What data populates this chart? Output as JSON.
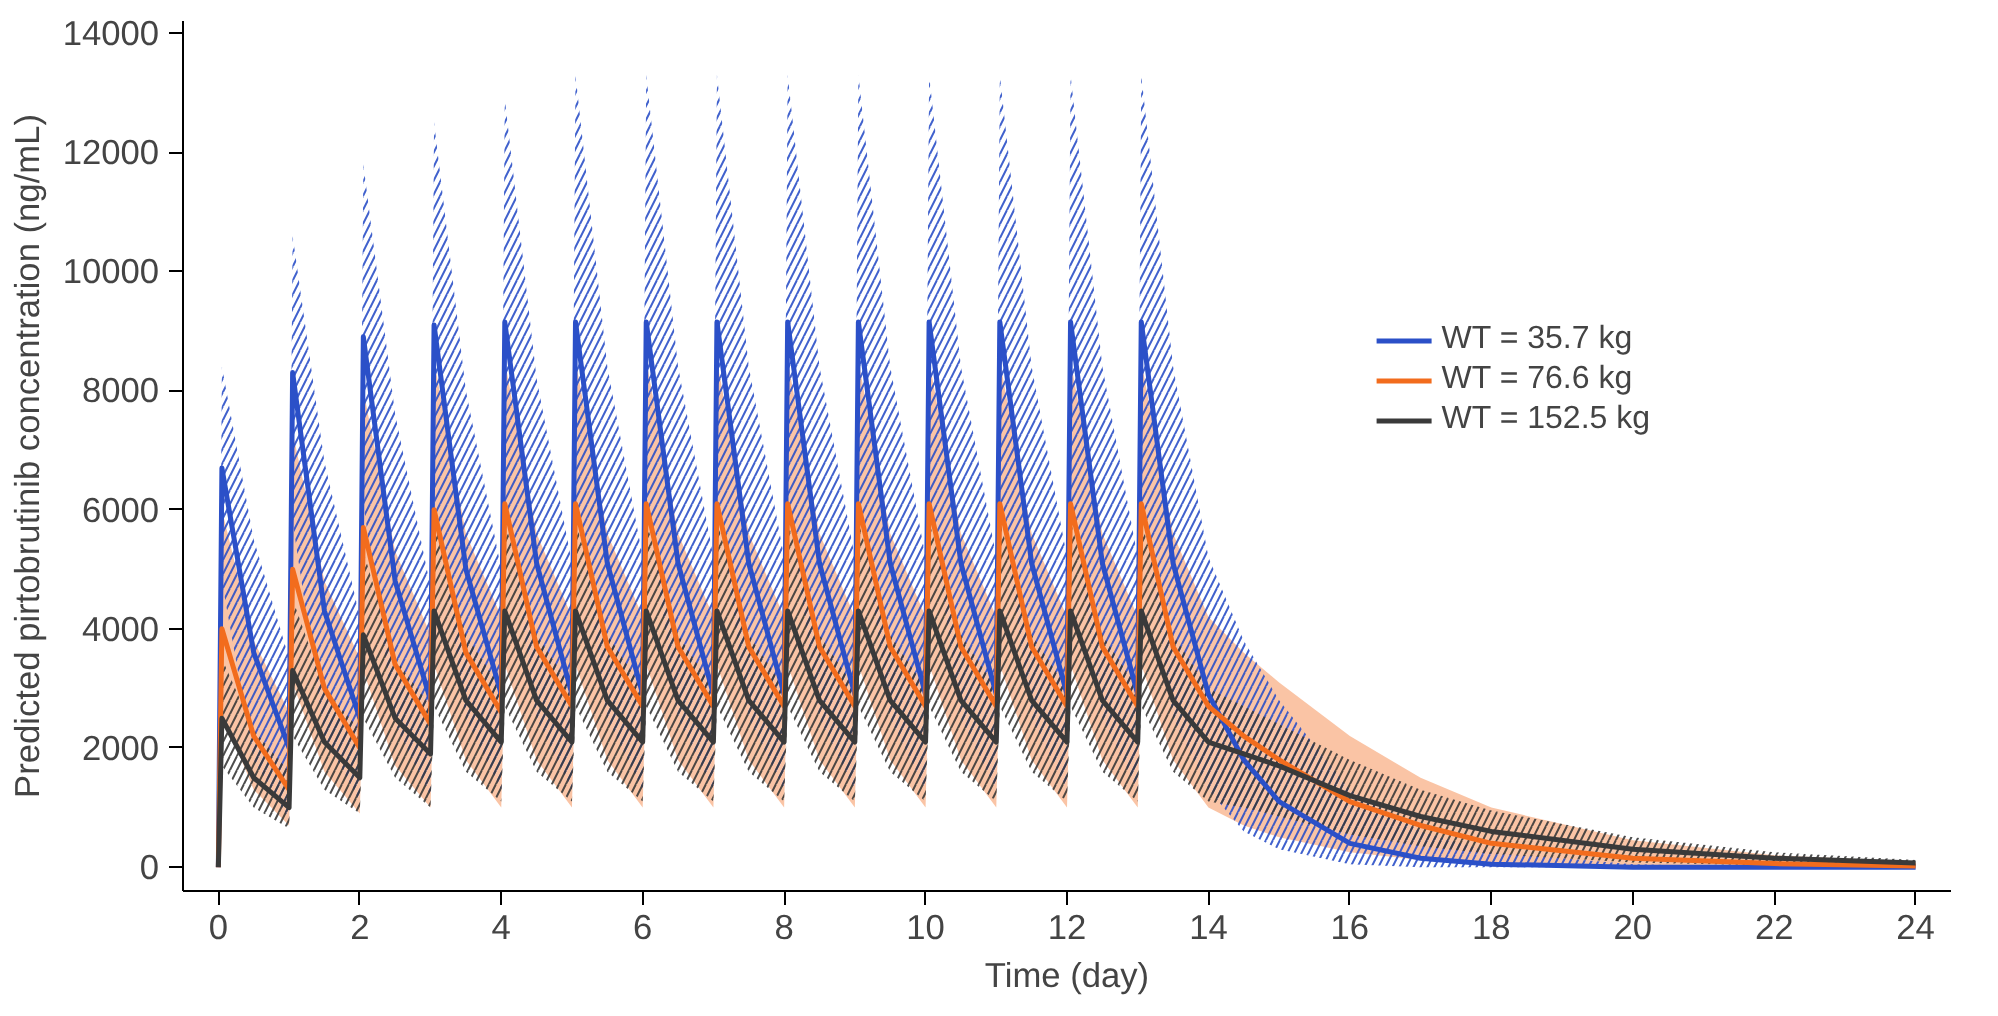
{
  "chart_data": {
    "type": "line",
    "xlabel": "Time (day)",
    "ylabel": "Predicted pirtobrutinib concentration (ng/mL)",
    "x": [
      0,
      0.05,
      0.5,
      1,
      1.05,
      1.5,
      2,
      2.05,
      2.5,
      3,
      3.05,
      3.5,
      4,
      4.05,
      4.5,
      5,
      5.05,
      5.5,
      6,
      6.05,
      6.5,
      7,
      7.05,
      7.5,
      8,
      8.05,
      8.5,
      9,
      9.05,
      9.5,
      10,
      10.05,
      10.5,
      11,
      11.05,
      11.5,
      12,
      12.05,
      12.5,
      13,
      13.05,
      13.5,
      14,
      14.5,
      15,
      16,
      17,
      18,
      20,
      22,
      24
    ],
    "series": [
      {
        "name": "WT = 35.7 kg",
        "color": "#2b50c8",
        "values": [
          0,
          6700,
          3600,
          2000,
          8300,
          4300,
          2500,
          8900,
          4800,
          2800,
          9100,
          5000,
          2900,
          9150,
          5100,
          2900,
          9150,
          5100,
          2900,
          9150,
          5100,
          2900,
          9150,
          5100,
          2900,
          9150,
          5100,
          2900,
          9150,
          5100,
          2900,
          9150,
          5100,
          2900,
          9150,
          5100,
          2900,
          9150,
          5100,
          2900,
          9150,
          5100,
          2900,
          1800,
          1100,
          400,
          150,
          50,
          0,
          0,
          0
        ],
        "lower": [
          0,
          4800,
          1800,
          800,
          5800,
          2200,
          1100,
          6100,
          2400,
          1200,
          6200,
          2500,
          1300,
          6200,
          2500,
          1300,
          6200,
          2500,
          1300,
          6200,
          2500,
          1300,
          6200,
          2500,
          1300,
          6200,
          2500,
          1300,
          6200,
          2500,
          1300,
          6200,
          2500,
          1300,
          6200,
          2500,
          1300,
          6200,
          2500,
          1300,
          6200,
          2500,
          1300,
          600,
          300,
          50,
          0,
          0,
          0,
          0,
          0
        ],
        "upper": [
          0,
          8400,
          5500,
          3500,
          10600,
          6800,
          4200,
          11800,
          7600,
          4700,
          12500,
          8000,
          5000,
          12900,
          8200,
          5100,
          13300,
          8400,
          5200,
          13300,
          8400,
          5200,
          13300,
          8400,
          5200,
          13300,
          8400,
          5200,
          13300,
          8400,
          5200,
          13300,
          8400,
          5200,
          13300,
          8400,
          5200,
          13300,
          8400,
          5200,
          13300,
          8400,
          5200,
          3800,
          2800,
          1300,
          600,
          250,
          50,
          0,
          0
        ]
      },
      {
        "name": "WT = 76.6 kg",
        "color": "#f26c1d",
        "values": [
          0,
          4000,
          2200,
          1300,
          5000,
          3000,
          2000,
          5700,
          3400,
          2400,
          6000,
          3600,
          2600,
          6100,
          3700,
          2700,
          6100,
          3700,
          2700,
          6100,
          3700,
          2700,
          6100,
          3700,
          2700,
          6100,
          3700,
          2700,
          6100,
          3700,
          2700,
          6100,
          3700,
          2700,
          6100,
          3700,
          2700,
          6100,
          3700,
          2700,
          6100,
          3700,
          2700,
          2200,
          1800,
          1100,
          700,
          400,
          150,
          60,
          20
        ],
        "lower": [
          0,
          2600,
          1300,
          700,
          3100,
          1600,
          900,
          3300,
          1700,
          1000,
          3400,
          1800,
          1000,
          3400,
          1800,
          1000,
          3400,
          1800,
          1000,
          3400,
          1800,
          1000,
          3400,
          1800,
          1000,
          3400,
          1800,
          1000,
          3400,
          1800,
          1000,
          3400,
          1800,
          1000,
          3400,
          1800,
          1000,
          3400,
          1800,
          1000,
          3400,
          1800,
          1000,
          700,
          500,
          250,
          120,
          60,
          10,
          0,
          0
        ],
        "upper": [
          0,
          6000,
          3800,
          2600,
          7300,
          4800,
          3500,
          8000,
          5300,
          3900,
          8500,
          5600,
          4200,
          8500,
          5600,
          4200,
          8500,
          5600,
          4200,
          8500,
          5600,
          4200,
          8500,
          5600,
          4200,
          8500,
          5600,
          4200,
          8500,
          5600,
          4200,
          8500,
          5600,
          4200,
          8500,
          5600,
          4200,
          8500,
          5600,
          4200,
          8500,
          5600,
          4200,
          3600,
          3100,
          2200,
          1500,
          1000,
          450,
          200,
          90
        ]
      },
      {
        "name": "WT = 152.5 kg",
        "color": "#3a3a3a",
        "values": [
          0,
          2500,
          1500,
          1000,
          3300,
          2100,
          1500,
          3900,
          2500,
          1900,
          4300,
          2800,
          2100,
          4300,
          2800,
          2100,
          4300,
          2800,
          2100,
          4300,
          2800,
          2100,
          4300,
          2800,
          2100,
          4300,
          2800,
          2100,
          4300,
          2800,
          2100,
          4300,
          2800,
          2100,
          4300,
          2800,
          2100,
          4300,
          2800,
          2100,
          4300,
          2800,
          2100,
          1900,
          1700,
          1200,
          850,
          600,
          300,
          150,
          70
        ],
        "lower": [
          0,
          1700,
          1000,
          650,
          2200,
          1300,
          900,
          2500,
          1500,
          1000,
          2700,
          1600,
          1100,
          2700,
          1600,
          1100,
          2700,
          1600,
          1100,
          2700,
          1600,
          1100,
          2700,
          1600,
          1100,
          2700,
          1600,
          1100,
          2700,
          1600,
          1100,
          2700,
          1600,
          1100,
          2700,
          1600,
          1100,
          2700,
          1600,
          1100,
          2700,
          1600,
          1100,
          1000,
          850,
          550,
          350,
          220,
          80,
          30,
          10
        ],
        "upper": [
          0,
          3500,
          2300,
          1600,
          4500,
          3000,
          2300,
          5300,
          3500,
          2700,
          5800,
          3900,
          3000,
          5800,
          3900,
          3000,
          5800,
          3900,
          3000,
          5800,
          3900,
          3000,
          5800,
          3900,
          3000,
          5800,
          3900,
          3000,
          5800,
          3900,
          3000,
          5800,
          3900,
          3000,
          5800,
          3900,
          3000,
          5800,
          3900,
          3000,
          5800,
          3900,
          3000,
          2700,
          2400,
          1800,
          1300,
          950,
          500,
          250,
          120
        ]
      }
    ],
    "xlim": [
      -0.5,
      24.5
    ],
    "ylim": [
      -400,
      14200
    ],
    "xticks": [
      0,
      2,
      4,
      6,
      8,
      10,
      12,
      14,
      16,
      18,
      20,
      22,
      24
    ],
    "yticks": [
      0,
      2000,
      4000,
      6000,
      8000,
      10000,
      12000,
      14000
    ],
    "grid": false,
    "legend": "top right",
    "marker": "none",
    "line_style": "solid"
  }
}
